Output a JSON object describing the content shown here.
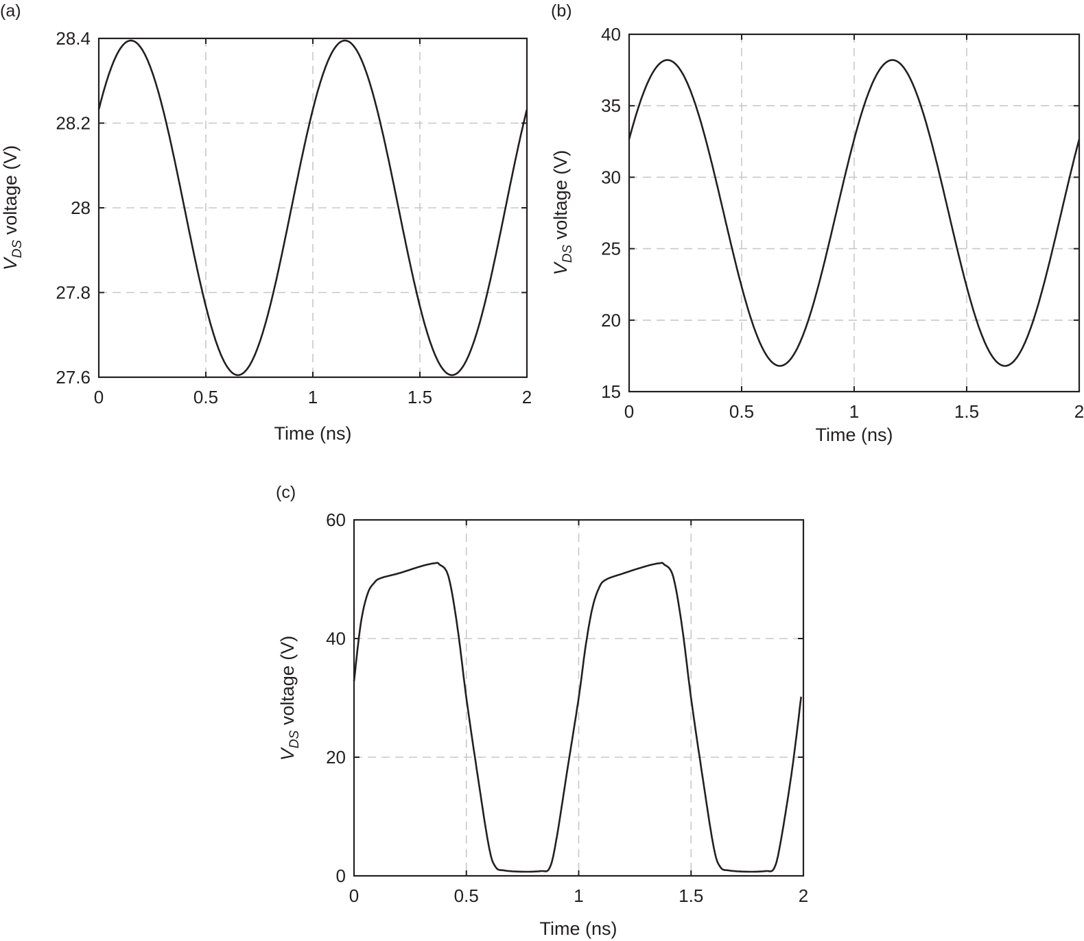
{
  "panels": [
    {
      "label": "(a)",
      "xlabel": "Time (ns)",
      "ylabel_main": "V",
      "ylabel_sub": "DS",
      "ylabel_rest": " voltage (V)"
    },
    {
      "label": "(b)",
      "xlabel": "Time (ns)",
      "ylabel_main": "V",
      "ylabel_sub": "DS",
      "ylabel_rest": " voltage (V)"
    },
    {
      "label": "(c)",
      "xlabel": "Time (ns)",
      "ylabel_main": "V",
      "ylabel_sub": "DS",
      "ylabel_rest": " voltage (V)"
    }
  ],
  "colors": {
    "line": "#231f20",
    "grid": "#c8c8c8",
    "axis": "#231f20"
  },
  "chart_data": [
    {
      "type": "line",
      "title": "(a)",
      "xlabel": "Time (ns)",
      "ylabel": "V_DS voltage (V)",
      "xlim": [
        0,
        2
      ],
      "ylim": [
        27.6,
        28.4
      ],
      "xticks": [
        "0",
        "0.5",
        "1",
        "1.5",
        "2"
      ],
      "yticks": [
        "27.6",
        "27.8",
        "28",
        "28.2",
        "28.4"
      ],
      "grid": true,
      "series": [
        {
          "name": "V_DS",
          "shape": "sinusoid",
          "offset": 28.0,
          "amplitude": 0.395,
          "period_ns": 1.0,
          "peak_time_ns": 0.15,
          "x": [
            0,
            0.15,
            0.4,
            0.65,
            0.9,
            1.15,
            1.4,
            1.65,
            1.9,
            2.0
          ],
          "y": [
            28.23,
            28.395,
            28.0,
            27.605,
            28.0,
            28.395,
            28.0,
            27.605,
            28.0,
            28.21
          ]
        }
      ]
    },
    {
      "type": "line",
      "title": "(b)",
      "xlabel": "Time (ns)",
      "ylabel": "V_DS voltage (V)",
      "xlim": [
        0,
        2
      ],
      "ylim": [
        15,
        40
      ],
      "xticks": [
        "0",
        "0.5",
        "1",
        "1.5",
        "2"
      ],
      "yticks": [
        "15",
        "20",
        "25",
        "30",
        "35",
        "40"
      ],
      "grid": true,
      "series": [
        {
          "name": "V_DS",
          "shape": "sinusoid",
          "offset": 27.5,
          "amplitude": 10.7,
          "period_ns": 1.0,
          "peak_time_ns": 0.17,
          "x": [
            0,
            0.17,
            0.42,
            0.66,
            0.92,
            1.17,
            1.42,
            1.66,
            1.92,
            2.0
          ],
          "y": [
            34.2,
            38.2,
            27.5,
            16.8,
            27.5,
            38.2,
            27.5,
            16.8,
            27.5,
            33.6
          ]
        }
      ]
    },
    {
      "type": "line",
      "title": "(c)",
      "xlabel": "Time (ns)",
      "ylabel": "V_DS voltage (V)",
      "xlim": [
        0,
        2
      ],
      "ylim": [
        0,
        60
      ],
      "xticks": [
        "0",
        "0.5",
        "1",
        "1.5",
        "2"
      ],
      "yticks": [
        "0",
        "20",
        "40",
        "60"
      ],
      "grid": true,
      "series": [
        {
          "name": "V_DS",
          "shape": "clipped",
          "x": [
            0,
            0.03,
            0.06,
            0.09,
            0.12,
            0.2,
            0.3,
            0.36,
            0.38,
            0.42,
            0.46,
            0.5,
            0.55,
            0.6,
            0.63,
            0.67,
            0.75,
            0.83,
            0.87,
            0.9,
            0.95,
            1.0,
            1.03,
            1.06,
            1.09,
            1.12,
            1.2,
            1.3,
            1.36,
            1.38,
            1.42,
            1.46,
            1.5,
            1.55,
            1.6,
            1.63,
            1.67,
            1.75,
            1.83,
            1.87,
            1.9,
            1.95,
            1.99
          ],
          "y": [
            32.8,
            42.5,
            47.5,
            49.4,
            50.2,
            51.0,
            52.2,
            52.7,
            52.5,
            50.5,
            42.0,
            30.0,
            17.0,
            5.0,
            1.5,
            0.9,
            0.7,
            0.8,
            1.3,
            6.0,
            18.0,
            30.0,
            38.5,
            45.0,
            48.5,
            49.9,
            51.0,
            52.2,
            52.7,
            52.5,
            50.5,
            42.0,
            30.0,
            17.0,
            5.0,
            1.5,
            0.9,
            0.7,
            0.8,
            1.3,
            6.0,
            18.0,
            30.2
          ]
        }
      ]
    }
  ]
}
